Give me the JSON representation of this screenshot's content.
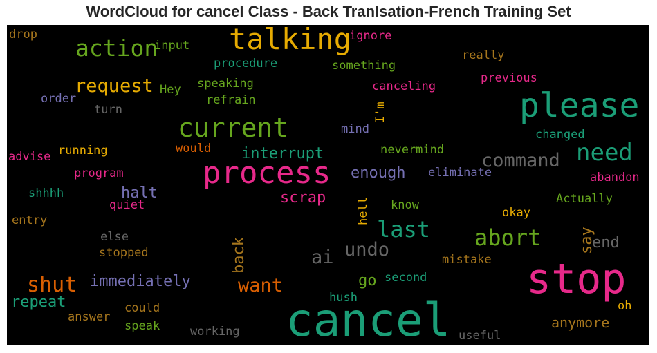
{
  "title": "WordCloud for cancel Class - Back Tranlsation-French Training Set",
  "colors": {
    "teal": "#1b9e77",
    "orange": "#d95f02",
    "purple": "#7570b3",
    "pink": "#e7298a",
    "green": "#66a61e",
    "gold": "#e6ab02",
    "brown": "#a6761d",
    "gray": "#666666"
  },
  "words": {
    "cancel": "cancel",
    "stop": "stop",
    "please": "please",
    "process": "process",
    "talking": "talking",
    "current": "current",
    "action": "action",
    "need": "need",
    "command": "command",
    "abort": "abort",
    "last": "last",
    "shut": "shut",
    "request": "request",
    "want": "want",
    "undo": "undo",
    "immediately": "immediately",
    "ai": "ai",
    "back": "back",
    "repeat": "repeat",
    "enough": "enough",
    "interrupt": "interrupt",
    "scrap": "scrap",
    "halt": "halt",
    "drop": "drop",
    "input": "input",
    "ignore": "ignore",
    "really": "really",
    "procedure": "procedure",
    "something": "something",
    "previous": "previous",
    "speaking": "speaking",
    "canceling": "canceling",
    "Hey": "Hey",
    "order": "order",
    "refrain": "refrain",
    "turn": "turn",
    "Im": "I'm",
    "mind": "mind",
    "changed": "changed",
    "would": "would",
    "nevermind": "nevermind",
    "advise": "advise",
    "running": "running",
    "program": "program",
    "eliminate": "eliminate",
    "abandon": "abandon",
    "shhhh": "shhhh",
    "quiet": "quiet",
    "hell": "hell",
    "know": "know",
    "Actually": "Actually",
    "okay": "okay",
    "entry": "entry",
    "say": "say",
    "end": "end",
    "else": "else",
    "stopped": "stopped",
    "mistake": "mistake",
    "go": "go",
    "second": "second",
    "hush": "hush",
    "could": "could",
    "oh": "oh",
    "answer": "answer",
    "speak": "speak",
    "anymore": "anymore",
    "working": "working",
    "useful": "useful"
  }
}
